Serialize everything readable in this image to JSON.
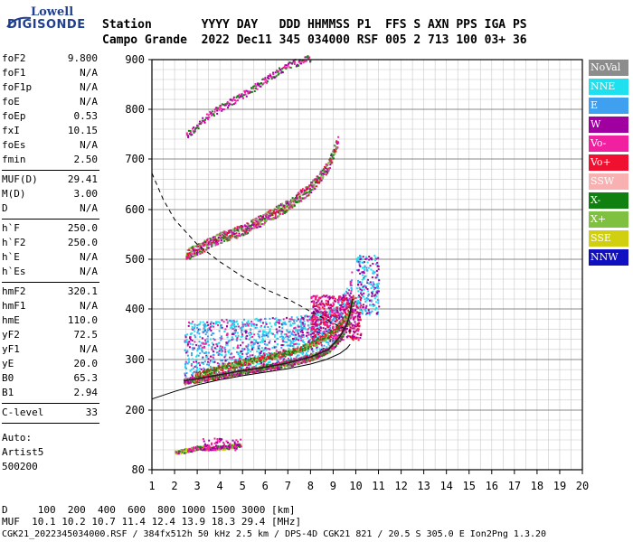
{
  "logo": {
    "line1": "Lowell",
    "line2": "DIGISONDE"
  },
  "header": {
    "row1": "Station       YYYY DAY   DDD HHMMSS P1  FFS S AXN PPS IGA PS",
    "row2": "Campo Grande  2022 Dec11 345 034000 RSF 005 2 713 100 03+ 36"
  },
  "params": {
    "group1": [
      {
        "k": "foF2",
        "v": "9.800"
      },
      {
        "k": "foF1",
        "v": "N/A"
      },
      {
        "k": "foF1p",
        "v": "N/A"
      },
      {
        "k": "foE",
        "v": "N/A"
      },
      {
        "k": "foEp",
        "v": "0.53"
      },
      {
        "k": "fxI",
        "v": "10.15"
      },
      {
        "k": "foEs",
        "v": "N/A"
      },
      {
        "k": "fmin",
        "v": "2.50"
      }
    ],
    "group2": [
      {
        "k": "MUF(D)",
        "v": "29.41"
      },
      {
        "k": "M(D)",
        "v": "3.00"
      },
      {
        "k": "D",
        "v": "N/A"
      }
    ],
    "group3": [
      {
        "k": "h`F",
        "v": "250.0"
      },
      {
        "k": "h`F2",
        "v": "250.0"
      },
      {
        "k": "h`E",
        "v": "N/A"
      },
      {
        "k": "h`Es",
        "v": "N/A"
      }
    ],
    "group4": [
      {
        "k": "hmF2",
        "v": "320.1"
      },
      {
        "k": "hmF1",
        "v": "N/A"
      },
      {
        "k": "hmE",
        "v": "110.0"
      },
      {
        "k": "yF2",
        "v": "72.5"
      },
      {
        "k": "yF1",
        "v": "N/A"
      },
      {
        "k": "yE",
        "v": "20.0"
      },
      {
        "k": "B0",
        "v": "65.3"
      },
      {
        "k": "B1",
        "v": "2.94"
      }
    ],
    "group5": [
      {
        "k": "C-level",
        "v": "33"
      }
    ],
    "notes": [
      "Auto:",
      "Artist5",
      "500200"
    ]
  },
  "legend": [
    {
      "label": "NoVal",
      "color": "#8c8c8c"
    },
    {
      "label": "NNE",
      "color": "#1ee0ee"
    },
    {
      "label": "E",
      "color": "#3fa0f0"
    },
    {
      "label": "W",
      "color": "#a000a0"
    },
    {
      "label": "Vo-",
      "color": "#f020a0"
    },
    {
      "label": "Vo+",
      "color": "#f01030"
    },
    {
      "label": "SSW",
      "color": "#f8b0b0"
    },
    {
      "label": "X-",
      "color": "#108010"
    },
    {
      "label": "X+",
      "color": "#80c040"
    },
    {
      "label": "SSE",
      "color": "#d0d010"
    },
    {
      "label": "NNW",
      "color": "#1010c0"
    }
  ],
  "footer": {
    "line1": "D     100  200  400  600  800 1000 1500 3000 [km]",
    "line2": "MUF  10.1 10.2 10.7 11.4 12.4 13.9 18.3 29.4 [MHz]",
    "line3": "CGK21_2022345034000.RSF / 384fx512h 50 kHz 2.5 km / DPS-4D CGK21 821 / 20.5 S 305.0 E Ion2Png 1.3.20"
  },
  "chart_data": {
    "type": "scatter",
    "title": "",
    "xlabel": "",
    "ylabel": "",
    "xlim": [
      1,
      20
    ],
    "ylim": [
      80,
      900
    ],
    "x_ticks": [
      1,
      2,
      3,
      4,
      5,
      6,
      7,
      8,
      9,
      10,
      11,
      12,
      13,
      14,
      15,
      16,
      17,
      18,
      19,
      20
    ],
    "y_ticks": [
      80,
      200,
      300,
      400,
      500,
      600,
      700,
      800,
      900
    ],
    "y_tick_labels": [
      "80",
      "200",
      "300",
      "400",
      "500",
      "600",
      "700",
      "800",
      "900"
    ],
    "grid": true,
    "legend_position": "right",
    "profile_curve": [
      [
        1.0,
        222
      ],
      [
        2.0,
        237
      ],
      [
        3.0,
        250
      ],
      [
        4.0,
        260
      ],
      [
        5.0,
        268
      ],
      [
        6.0,
        275
      ],
      [
        7.0,
        282
      ],
      [
        8.0,
        291
      ],
      [
        8.7,
        300
      ],
      [
        9.3,
        312
      ],
      [
        9.6,
        322
      ],
      [
        9.75,
        330
      ]
    ],
    "dashed_curve": [
      [
        1.0,
        672
      ],
      [
        1.5,
        620
      ],
      [
        2.0,
        580
      ],
      [
        3.0,
        530
      ],
      [
        4.0,
        495
      ],
      [
        5.0,
        465
      ],
      [
        6.0,
        440
      ],
      [
        7.0,
        420
      ],
      [
        8.0,
        395
      ],
      [
        9.0,
        372
      ],
      [
        9.8,
        355
      ]
    ],
    "ox_trace": [
      [
        2.4,
        258
      ],
      [
        3.0,
        262
      ],
      [
        4.0,
        270
      ],
      [
        5.0,
        278
      ],
      [
        6.0,
        285
      ],
      [
        7.0,
        293
      ],
      [
        8.0,
        305
      ],
      [
        8.8,
        320
      ],
      [
        9.3,
        345
      ],
      [
        9.6,
        370
      ],
      [
        9.75,
        392
      ],
      [
        9.85,
        420
      ]
    ],
    "x_trace": [
      [
        2.9,
        270
      ],
      [
        4.0,
        285
      ],
      [
        5.0,
        295
      ],
      [
        6.0,
        305
      ],
      [
        7.0,
        315
      ],
      [
        8.0,
        330
      ],
      [
        9.0,
        355
      ],
      [
        9.6,
        390
      ],
      [
        9.9,
        430
      ]
    ],
    "multihop_trace": [
      [
        2.5,
        510
      ],
      [
        4.0,
        545
      ],
      [
        5.0,
        560
      ],
      [
        6.0,
        585
      ],
      [
        7.0,
        610
      ],
      [
        8.0,
        645
      ],
      [
        8.8,
        690
      ],
      [
        9.2,
        740
      ]
    ],
    "faint_trace": [
      [
        2.5,
        748
      ],
      [
        3.5,
        790
      ],
      [
        5.0,
        830
      ],
      [
        6.0,
        860
      ],
      [
        7.0,
        890
      ],
      [
        8.0,
        905
      ]
    ],
    "es_low": [
      [
        2.0,
        115
      ],
      [
        3.0,
        125
      ],
      [
        4.0,
        125
      ],
      [
        4.9,
        130
      ]
    ]
  }
}
